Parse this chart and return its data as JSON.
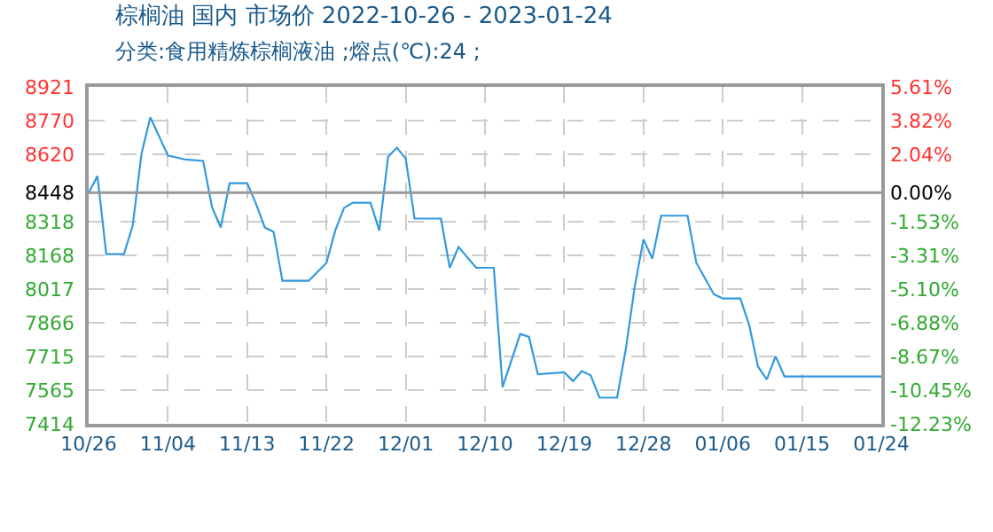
{
  "chart_data": {
    "type": "line",
    "title": "棕榈油 国内 市场价 2022-10-26 - 2023-01-24",
    "subtitle": "分类:食用精炼棕榈液油 ;熔点(℃):24 ;",
    "x": [
      "2022-10-26",
      "2022-10-27",
      "2022-10-28",
      "2022-10-30",
      "2022-10-31",
      "2022-11-01",
      "2022-11-02",
      "2022-11-04",
      "2022-11-06",
      "2022-11-08",
      "2022-11-09",
      "2022-11-10",
      "2022-11-11",
      "2022-11-13",
      "2022-11-14",
      "2022-11-15",
      "2022-11-16",
      "2022-11-17",
      "2022-11-20",
      "2022-11-22",
      "2022-11-23",
      "2022-11-24",
      "2022-11-25",
      "2022-11-27",
      "2022-11-28",
      "2022-11-29",
      "2022-11-30",
      "2022-12-01",
      "2022-12-02",
      "2022-12-05",
      "2022-12-06",
      "2022-12-07",
      "2022-12-09",
      "2022-12-11",
      "2022-12-12",
      "2022-12-14",
      "2022-12-15",
      "2022-12-16",
      "2022-12-19",
      "2022-12-20",
      "2022-12-21",
      "2022-12-22",
      "2022-12-23",
      "2022-12-25",
      "2022-12-26",
      "2022-12-27",
      "2022-12-28",
      "2022-12-29",
      "2022-12-30",
      "2023-01-02",
      "2023-01-03",
      "2023-01-05",
      "2023-01-06",
      "2023-01-08",
      "2023-01-09",
      "2023-01-10",
      "2023-01-11",
      "2023-01-12",
      "2023-01-13",
      "2023-01-24"
    ],
    "series": [
      {
        "color": "#3399dd",
        "values": [
          8448,
          8522,
          8173,
          8173,
          8300,
          8622,
          8785,
          8614,
          8596,
          8590,
          8384,
          8292,
          8490,
          8490,
          8398,
          8292,
          8273,
          8054,
          8054,
          8134,
          8279,
          8380,
          8403,
          8403,
          8279,
          8609,
          8649,
          8601,
          8332,
          8332,
          8112,
          8205,
          8112,
          8112,
          7578,
          7816,
          7803,
          7636,
          7644,
          7605,
          7650,
          7631,
          7531,
          7531,
          7750,
          8027,
          8239,
          8152,
          8345,
          8345,
          8134,
          7993,
          7975,
          7975,
          7856,
          7670,
          7613,
          7716,
          7626,
          7626
        ]
      }
    ],
    "xlim": [
      "2022-10-26",
      "2023-01-24"
    ],
    "xticks": [
      {
        "value": "2022-10-26",
        "label": "10/26"
      },
      {
        "value": "2022-11-04",
        "label": "11/04"
      },
      {
        "value": "2022-11-13",
        "label": "11/13"
      },
      {
        "value": "2022-11-22",
        "label": "11/22"
      },
      {
        "value": "2022-12-01",
        "label": "12/01"
      },
      {
        "value": "2022-12-10",
        "label": "12/10"
      },
      {
        "value": "2022-12-19",
        "label": "12/19"
      },
      {
        "value": "2022-12-28",
        "label": "12/28"
      },
      {
        "value": "2023-01-06",
        "label": "01/06"
      },
      {
        "value": "2023-01-15",
        "label": "01/15"
      },
      {
        "value": "2023-01-24",
        "label": "01/24"
      }
    ],
    "ylim": [
      7414,
      8921
    ],
    "yticks": [
      7414,
      7565,
      7715,
      7866,
      8017,
      8168,
      8318,
      8448,
      8620,
      8770,
      8921
    ],
    "y2lim": [
      -12.23,
      5.61
    ],
    "y2ticks": [
      {
        "value": -12.23,
        "label": "-12.23%"
      },
      {
        "value": -10.45,
        "label": "-10.45%"
      },
      {
        "value": -8.67,
        "label": "-8.67%"
      },
      {
        "value": -6.88,
        "label": "-6.88%"
      },
      {
        "value": -5.1,
        "label": "-5.10%"
      },
      {
        "value": -3.31,
        "label": "-3.31%"
      },
      {
        "value": -1.53,
        "label": "-1.53%"
      },
      {
        "value": 0,
        "label": "0.00%"
      },
      {
        "value": 2.04,
        "label": "2.04%"
      },
      {
        "value": 3.82,
        "label": "3.82%"
      },
      {
        "value": 5.61,
        "label": "5.61%"
      }
    ],
    "ref_lines": [
      {
        "axis": "y",
        "value": 8448,
        "color": "#999999"
      }
    ],
    "grid": true,
    "line_style": "solid",
    "marker": "none"
  }
}
